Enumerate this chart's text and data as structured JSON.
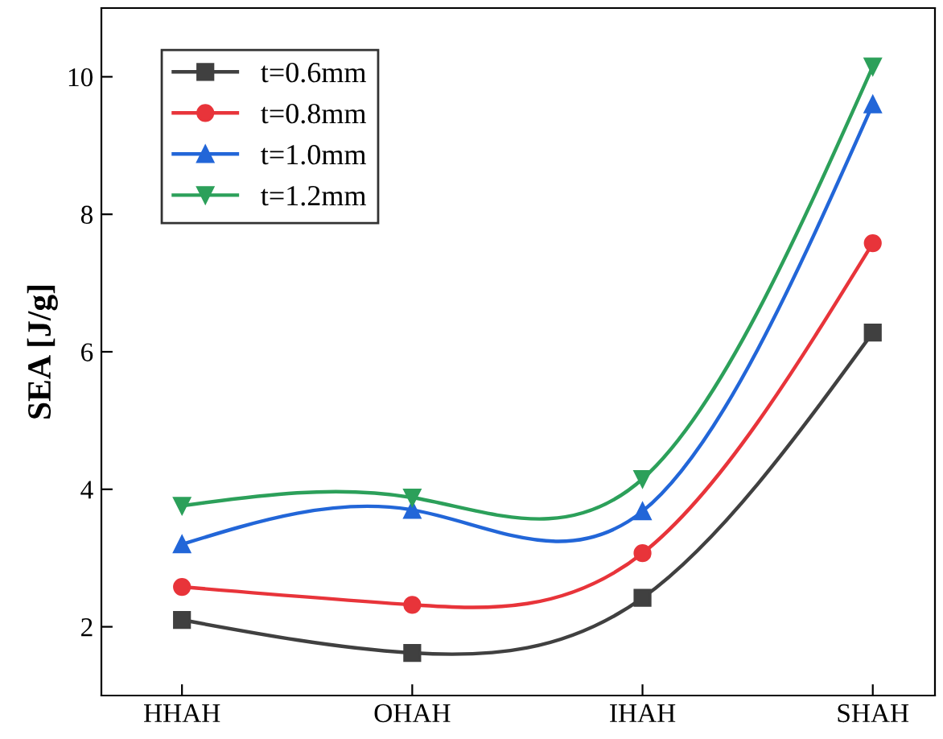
{
  "chart_data": {
    "type": "line",
    "ylabel": "SEA [J/g]",
    "categories": [
      "HHAH",
      "OHAH",
      "IHAH",
      "SHAH"
    ],
    "ylim": [
      1,
      11
    ],
    "yticks": [
      2,
      4,
      6,
      8,
      10
    ],
    "grid": false,
    "legend": "top left",
    "line_style": "solid",
    "series": [
      {
        "name": "t=0.6mm",
        "color": "#404040",
        "marker": "square",
        "values": [
          2.1,
          1.62,
          2.42,
          6.28
        ]
      },
      {
        "name": "t=0.8mm",
        "color": "#e8343a",
        "marker": "circle",
        "values": [
          2.58,
          2.32,
          3.07,
          7.58
        ]
      },
      {
        "name": "t=1.0mm",
        "color": "#2266d8",
        "marker": "triangle",
        "values": [
          3.2,
          3.7,
          3.68,
          9.6
        ]
      },
      {
        "name": "t=1.2mm",
        "color": "#2ca05a",
        "marker": "triangle_down",
        "values": [
          3.76,
          3.88,
          4.15,
          10.15
        ]
      }
    ]
  }
}
